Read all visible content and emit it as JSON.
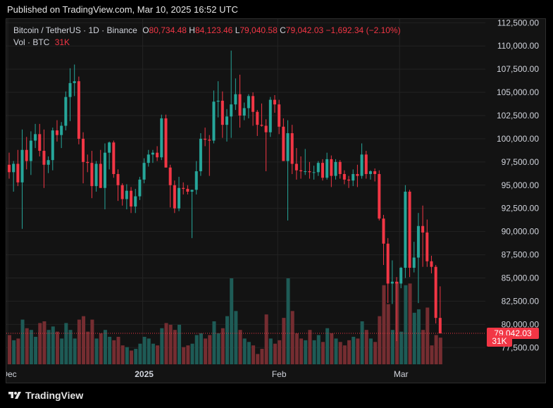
{
  "published": "Published on TradingView.com, Mar 10, 2025 16:52 UTC",
  "legend": {
    "symbol": "Bitcoin / TetherUS · 1D · Binance",
    "o_label": "O",
    "o_value": "80,734.48",
    "h_label": "H",
    "h_value": "84,123.46",
    "l_label": "L",
    "l_value": "79,040.58",
    "c_label": "C",
    "c_value": "79,042.03",
    "change": "−1,692.34 (−2.10%)",
    "vol_label": "Vol · BTC",
    "vol_value": "31K"
  },
  "footer": {
    "brand": "TradingView"
  },
  "colors": {
    "up": "#26a69a",
    "down": "#f23645",
    "background": "#131313",
    "grid": "#232323",
    "text": "#d1d4dc"
  },
  "chart_data": {
    "type": "candlestick",
    "title": "Bitcoin / TetherUS · 1D · Binance",
    "ylim": [
      75700,
      112900
    ],
    "y_ticks": [
      112500,
      110000,
      107500,
      105000,
      102500,
      100000,
      97500,
      95000,
      92500,
      90000,
      87500,
      85000,
      82500,
      80000,
      77500
    ],
    "y_tick_labels": [
      "112,500.00",
      "110,000.00",
      "107,500.00",
      "105,000.00",
      "102,500.00",
      "100,000.00",
      "97,500.00",
      "95,000.00",
      "92,500.00",
      "90,000.00",
      "87,500.00",
      "85,000.00",
      "82,500.00",
      "80,000.00",
      "77,500.00"
    ],
    "x_labels": [
      {
        "label": "Dec",
        "index": 0,
        "bold": false
      },
      {
        "label": "2025",
        "index": 31,
        "bold": true
      },
      {
        "label": "Feb",
        "index": 62,
        "bold": false
      },
      {
        "label": "Mar",
        "index": 90,
        "bold": false
      }
    ],
    "last_price": 79042.03,
    "last_price_label": "79,042.03",
    "last_volume_label": "31K",
    "volume_max": 100,
    "candles": [
      {
        "o": 97200,
        "h": 98500,
        "l": 95700,
        "c": 96400,
        "v": 34
      },
      {
        "o": 96400,
        "h": 97600,
        "l": 94300,
        "c": 97300,
        "v": 28
      },
      {
        "o": 97300,
        "h": 98800,
        "l": 94900,
        "c": 95300,
        "v": 30
      },
      {
        "o": 95300,
        "h": 101000,
        "l": 90300,
        "c": 98800,
        "v": 52
      },
      {
        "o": 98800,
        "h": 100200,
        "l": 96700,
        "c": 97600,
        "v": 42
      },
      {
        "o": 97600,
        "h": 100800,
        "l": 96100,
        "c": 99800,
        "v": 40
      },
      {
        "o": 99800,
        "h": 101600,
        "l": 99000,
        "c": 100500,
        "v": 32
      },
      {
        "o": 100500,
        "h": 101600,
        "l": 98100,
        "c": 98700,
        "v": 48
      },
      {
        "o": 98700,
        "h": 101000,
        "l": 94700,
        "c": 97200,
        "v": 50
      },
      {
        "o": 97200,
        "h": 98100,
        "l": 96300,
        "c": 97700,
        "v": 40
      },
      {
        "o": 97700,
        "h": 101200,
        "l": 96600,
        "c": 100900,
        "v": 44
      },
      {
        "o": 100900,
        "h": 102000,
        "l": 99700,
        "c": 100400,
        "v": 38
      },
      {
        "o": 100400,
        "h": 101800,
        "l": 99000,
        "c": 101400,
        "v": 30
      },
      {
        "o": 101400,
        "h": 105100,
        "l": 100900,
        "c": 104500,
        "v": 48
      },
      {
        "o": 104500,
        "h": 107600,
        "l": 101900,
        "c": 106000,
        "v": 40
      },
      {
        "o": 106000,
        "h": 108000,
        "l": 104600,
        "c": 106200,
        "v": 30
      },
      {
        "o": 106200,
        "h": 106700,
        "l": 99400,
        "c": 100000,
        "v": 52
      },
      {
        "o": 100000,
        "h": 100700,
        "l": 95200,
        "c": 97500,
        "v": 56
      },
      {
        "o": 97500,
        "h": 98300,
        "l": 96400,
        "c": 97400,
        "v": 38
      },
      {
        "o": 97400,
        "h": 98700,
        "l": 93600,
        "c": 94900,
        "v": 52
      },
      {
        "o": 94900,
        "h": 97600,
        "l": 94300,
        "c": 97300,
        "v": 30
      },
      {
        "o": 97300,
        "h": 98800,
        "l": 94700,
        "c": 94700,
        "v": 36
      },
      {
        "o": 94700,
        "h": 99500,
        "l": 92400,
        "c": 98500,
        "v": 40
      },
      {
        "o": 98500,
        "h": 99700,
        "l": 96700,
        "c": 99600,
        "v": 32
      },
      {
        "o": 99600,
        "h": 99800,
        "l": 95800,
        "c": 96200,
        "v": 28
      },
      {
        "o": 96200,
        "h": 96700,
        "l": 93300,
        "c": 95000,
        "v": 32
      },
      {
        "o": 95000,
        "h": 95200,
        "l": 92800,
        "c": 93500,
        "v": 22
      },
      {
        "o": 93500,
        "h": 95100,
        "l": 92400,
        "c": 94400,
        "v": 20
      },
      {
        "o": 94400,
        "h": 94800,
        "l": 92000,
        "c": 92700,
        "v": 16
      },
      {
        "o": 92700,
        "h": 94600,
        "l": 92000,
        "c": 93800,
        "v": 18
      },
      {
        "o": 93800,
        "h": 95900,
        "l": 93400,
        "c": 95600,
        "v": 24
      },
      {
        "o": 95600,
        "h": 97900,
        "l": 95200,
        "c": 97400,
        "v": 32
      },
      {
        "o": 97400,
        "h": 98800,
        "l": 97000,
        "c": 98300,
        "v": 30
      },
      {
        "o": 98300,
        "h": 98800,
        "l": 97400,
        "c": 98500,
        "v": 24
      },
      {
        "o": 98500,
        "h": 99200,
        "l": 97600,
        "c": 98000,
        "v": 22
      },
      {
        "o": 98000,
        "h": 102600,
        "l": 97700,
        "c": 102200,
        "v": 42
      },
      {
        "o": 102200,
        "h": 102600,
        "l": 96900,
        "c": 96900,
        "v": 48
      },
      {
        "o": 96900,
        "h": 97200,
        "l": 92600,
        "c": 95000,
        "v": 46
      },
      {
        "o": 95000,
        "h": 95500,
        "l": 92000,
        "c": 92500,
        "v": 40
      },
      {
        "o": 92500,
        "h": 95900,
        "l": 92200,
        "c": 94700,
        "v": 46
      },
      {
        "o": 94700,
        "h": 95300,
        "l": 94000,
        "c": 94600,
        "v": 20
      },
      {
        "o": 94600,
        "h": 95000,
        "l": 94000,
        "c": 94300,
        "v": 22
      },
      {
        "o": 94300,
        "h": 94500,
        "l": 89300,
        "c": 94500,
        "v": 24
      },
      {
        "o": 94500,
        "h": 97600,
        "l": 94000,
        "c": 96500,
        "v": 34
      },
      {
        "o": 96500,
        "h": 100600,
        "l": 96000,
        "c": 100000,
        "v": 36
      },
      {
        "o": 100000,
        "h": 101200,
        "l": 99200,
        "c": 99900,
        "v": 30
      },
      {
        "o": 99900,
        "h": 100400,
        "l": 96000,
        "c": 99800,
        "v": 34
      },
      {
        "o": 99800,
        "h": 105200,
        "l": 99500,
        "c": 104000,
        "v": 50
      },
      {
        "o": 104000,
        "h": 106200,
        "l": 102300,
        "c": 104100,
        "v": 36
      },
      {
        "o": 104100,
        "h": 105100,
        "l": 100100,
        "c": 101500,
        "v": 42
      },
      {
        "o": 101500,
        "h": 103200,
        "l": 99700,
        "c": 102400,
        "v": 56
      },
      {
        "o": 102400,
        "h": 109500,
        "l": 100100,
        "c": 103700,
        "v": 100
      },
      {
        "o": 103700,
        "h": 106500,
        "l": 103100,
        "c": 104800,
        "v": 62
      },
      {
        "o": 104800,
        "h": 106900,
        "l": 101200,
        "c": 102500,
        "v": 40
      },
      {
        "o": 102500,
        "h": 103900,
        "l": 102000,
        "c": 103300,
        "v": 30
      },
      {
        "o": 103300,
        "h": 104800,
        "l": 102200,
        "c": 104600,
        "v": 26
      },
      {
        "o": 104600,
        "h": 105000,
        "l": 101400,
        "c": 102900,
        "v": 22
      },
      {
        "o": 102900,
        "h": 103100,
        "l": 100300,
        "c": 101500,
        "v": 12
      },
      {
        "o": 101500,
        "h": 103800,
        "l": 101300,
        "c": 101400,
        "v": 18
      },
      {
        "o": 101400,
        "h": 102100,
        "l": 96500,
        "c": 100700,
        "v": 58
      },
      {
        "o": 100700,
        "h": 104500,
        "l": 100200,
        "c": 104200,
        "v": 30
      },
      {
        "o": 104200,
        "h": 104700,
        "l": 102800,
        "c": 103700,
        "v": 24
      },
      {
        "o": 103700,
        "h": 104200,
        "l": 100500,
        "c": 101300,
        "v": 28
      },
      {
        "o": 101300,
        "h": 102200,
        "l": 97600,
        "c": 97600,
        "v": 54
      },
      {
        "o": 97600,
        "h": 102000,
        "l": 91200,
        "c": 100600,
        "v": 100
      },
      {
        "o": 100600,
        "h": 101500,
        "l": 96200,
        "c": 97300,
        "v": 62
      },
      {
        "o": 97300,
        "h": 99000,
        "l": 95600,
        "c": 96600,
        "v": 36
      },
      {
        "o": 96600,
        "h": 98100,
        "l": 95700,
        "c": 96500,
        "v": 30
      },
      {
        "o": 96500,
        "h": 98900,
        "l": 96100,
        "c": 96500,
        "v": 28
      },
      {
        "o": 96500,
        "h": 97500,
        "l": 95700,
        "c": 96400,
        "v": 40
      },
      {
        "o": 96400,
        "h": 97100,
        "l": 95600,
        "c": 96400,
        "v": 28
      },
      {
        "o": 96400,
        "h": 97600,
        "l": 96000,
        "c": 97400,
        "v": 34
      },
      {
        "o": 97400,
        "h": 97800,
        "l": 95500,
        "c": 95800,
        "v": 26
      },
      {
        "o": 95800,
        "h": 98500,
        "l": 95600,
        "c": 97800,
        "v": 42
      },
      {
        "o": 97800,
        "h": 98200,
        "l": 94800,
        "c": 96000,
        "v": 36
      },
      {
        "o": 96000,
        "h": 97800,
        "l": 95600,
        "c": 97500,
        "v": 30
      },
      {
        "o": 97500,
        "h": 97700,
        "l": 95700,
        "c": 96200,
        "v": 26
      },
      {
        "o": 96200,
        "h": 96600,
        "l": 95100,
        "c": 95600,
        "v": 22
      },
      {
        "o": 95600,
        "h": 96000,
        "l": 94700,
        "c": 95500,
        "v": 28
      },
      {
        "o": 95500,
        "h": 96700,
        "l": 94900,
        "c": 96200,
        "v": 32
      },
      {
        "o": 96200,
        "h": 97200,
        "l": 94800,
        "c": 96000,
        "v": 30
      },
      {
        "o": 96000,
        "h": 99500,
        "l": 95700,
        "c": 98300,
        "v": 50
      },
      {
        "o": 98300,
        "h": 98700,
        "l": 95700,
        "c": 96200,
        "v": 40
      },
      {
        "o": 96200,
        "h": 96600,
        "l": 95600,
        "c": 96500,
        "v": 30
      },
      {
        "o": 96500,
        "h": 96800,
        "l": 95400,
        "c": 96200,
        "v": 26
      },
      {
        "o": 96200,
        "h": 96600,
        "l": 91200,
        "c": 91400,
        "v": 56
      },
      {
        "o": 91400,
        "h": 91800,
        "l": 86400,
        "c": 88700,
        "v": 92
      },
      {
        "o": 88700,
        "h": 89300,
        "l": 82300,
        "c": 84400,
        "v": 70
      },
      {
        "o": 84400,
        "h": 86900,
        "l": 82200,
        "c": 84600,
        "v": 40
      },
      {
        "o": 84600,
        "h": 85100,
        "l": 78200,
        "c": 84400,
        "v": 96
      },
      {
        "o": 84400,
        "h": 86200,
        "l": 83900,
        "c": 86100,
        "v": 38
      },
      {
        "o": 86100,
        "h": 95000,
        "l": 85000,
        "c": 94300,
        "v": 92
      },
      {
        "o": 94300,
        "h": 94500,
        "l": 85100,
        "c": 86100,
        "v": 94
      },
      {
        "o": 86100,
        "h": 88900,
        "l": 85600,
        "c": 87200,
        "v": 60
      },
      {
        "o": 87200,
        "h": 92000,
        "l": 82300,
        "c": 90600,
        "v": 64
      },
      {
        "o": 90600,
        "h": 92800,
        "l": 86200,
        "c": 89900,
        "v": 40
      },
      {
        "o": 89900,
        "h": 91300,
        "l": 86200,
        "c": 86800,
        "v": 66
      },
      {
        "o": 86800,
        "h": 87400,
        "l": 85500,
        "c": 86200,
        "v": 22
      },
      {
        "o": 86200,
        "h": 86400,
        "l": 80100,
        "c": 80700,
        "v": 34
      },
      {
        "o": 80700,
        "h": 84100,
        "l": 79000,
        "c": 79042,
        "v": 31
      }
    ]
  }
}
